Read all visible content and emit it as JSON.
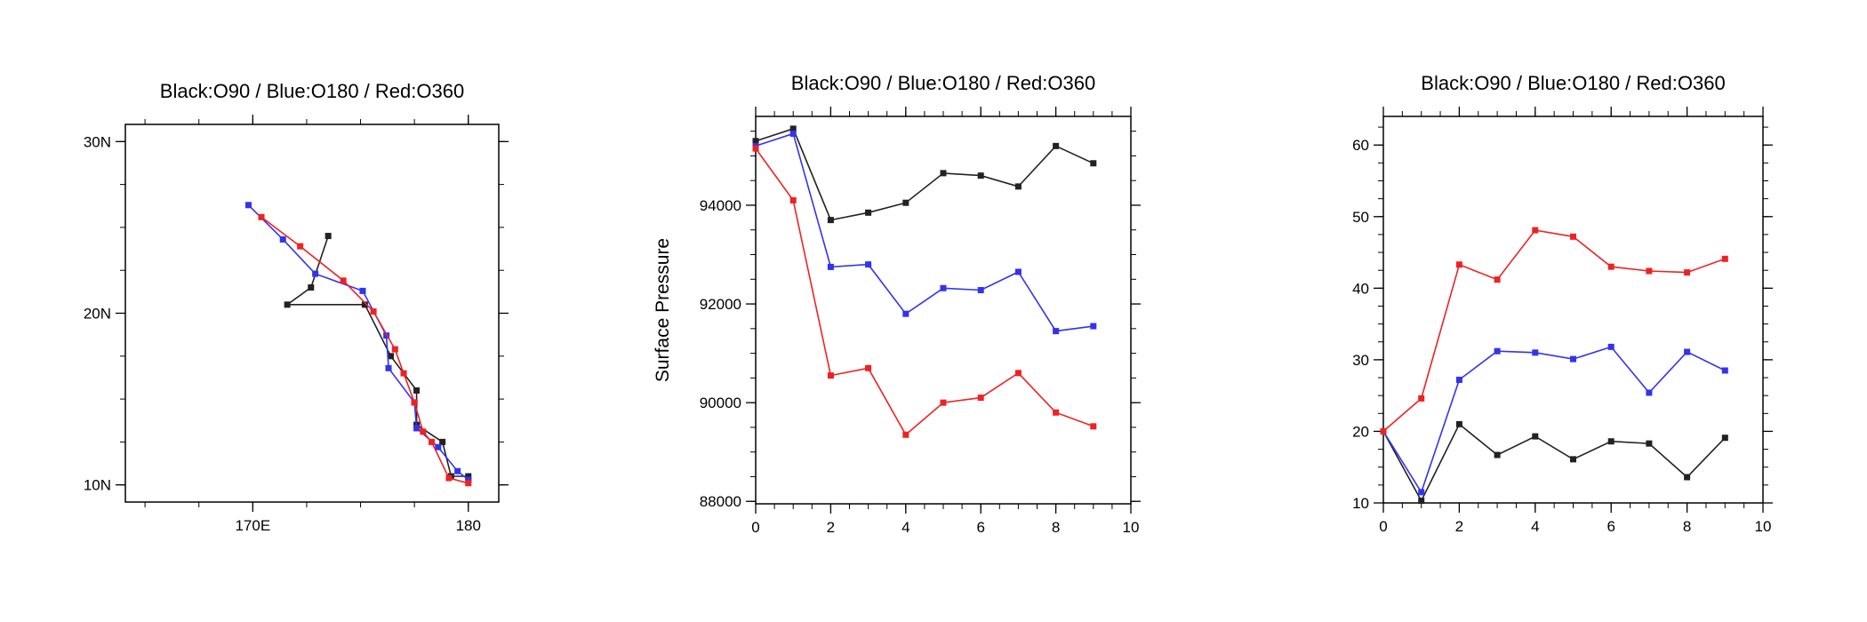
{
  "colors": {
    "black": "#222222",
    "blue": "#3333ee",
    "red": "#ee2222"
  },
  "chart_data": [
    {
      "type": "line",
      "title": "Black:O90 / Blue:O180 / Red:O360",
      "xlabel": "",
      "ylabel": "",
      "xlim": [
        164.5,
        181
      ],
      "ylim": [
        9,
        31
      ],
      "x_ticks": [
        {
          "v": 170,
          "label": "170E"
        },
        {
          "v": 180,
          "label": "180"
        }
      ],
      "y_ticks": [
        {
          "v": 10,
          "label": "10N"
        },
        {
          "v": 20,
          "label": "20N"
        },
        {
          "v": 30,
          "label": "30N"
        }
      ],
      "x_minor_step": 2.5,
      "y_minor_step": 2.5,
      "series": [
        {
          "color": "black",
          "x": [
            173.5,
            172.7,
            171.6,
            175.2,
            176.4,
            177.6,
            177.6,
            178.8,
            179.2,
            180.0,
            180.0
          ],
          "y": [
            24.5,
            21.5,
            20.5,
            20.5,
            17.5,
            15.5,
            13.5,
            12.5,
            10.5,
            10.5,
            10.3
          ]
        },
        {
          "color": "blue",
          "x": [
            169.8,
            171.4,
            172.9,
            175.1,
            176.2,
            176.3,
            177.5,
            177.6,
            178.6,
            179.5,
            180.0
          ],
          "y": [
            26.3,
            24.3,
            22.3,
            21.3,
            18.7,
            16.8,
            14.8,
            13.3,
            12.2,
            10.8,
            10.3
          ]
        },
        {
          "color": "red",
          "x": [
            170.4,
            172.2,
            174.2,
            175.6,
            176.6,
            177.0,
            177.5,
            177.9,
            178.3,
            179.1,
            180.0
          ],
          "y": [
            25.6,
            23.9,
            21.9,
            20.1,
            17.9,
            16.5,
            14.8,
            13.1,
            12.5,
            10.4,
            10.1
          ]
        }
      ]
    },
    {
      "type": "line",
      "title": "Black:O90 / Blue:O180 / Red:O360",
      "xlabel": "",
      "ylabel": "Surface Pressure",
      "xlim": [
        0,
        10
      ],
      "ylim": [
        87950,
        95800
      ],
      "x_ticks": [
        {
          "v": 0,
          "label": "0"
        },
        {
          "v": 2,
          "label": "2"
        },
        {
          "v": 4,
          "label": "4"
        },
        {
          "v": 6,
          "label": "6"
        },
        {
          "v": 8,
          "label": "8"
        },
        {
          "v": 10,
          "label": "10"
        }
      ],
      "y_ticks": [
        {
          "v": 88000,
          "label": "88000"
        },
        {
          "v": 90000,
          "label": "90000"
        },
        {
          "v": 92000,
          "label": "92000"
        },
        {
          "v": 94000,
          "label": "94000"
        }
      ],
      "x_minor_step": 0.5,
      "y_minor_step": 500,
      "series": [
        {
          "color": "black",
          "x": [
            0,
            1,
            2,
            3,
            4,
            5,
            6,
            7,
            8,
            9
          ],
          "y": [
            95300,
            95550,
            93700,
            93850,
            94050,
            94650,
            94600,
            94380,
            95200,
            94850
          ]
        },
        {
          "color": "blue",
          "x": [
            0,
            1,
            2,
            3,
            4,
            5,
            6,
            7,
            8,
            9
          ],
          "y": [
            95200,
            95450,
            92750,
            92800,
            91800,
            92320,
            92280,
            92650,
            91450,
            91550
          ]
        },
        {
          "color": "red",
          "x": [
            0,
            1,
            2,
            3,
            4,
            5,
            6,
            7,
            8,
            9
          ],
          "y": [
            95150,
            94100,
            90550,
            90700,
            89350,
            90000,
            90100,
            90600,
            89800,
            89520
          ]
        }
      ]
    },
    {
      "type": "line",
      "title": "Black:O90 / Blue:O180 / Red:O360",
      "xlabel": "",
      "ylabel": "",
      "xlim": [
        0,
        10
      ],
      "ylim": [
        10,
        64
      ],
      "x_ticks": [
        {
          "v": 0,
          "label": "0"
        },
        {
          "v": 2,
          "label": "2"
        },
        {
          "v": 4,
          "label": "4"
        },
        {
          "v": 6,
          "label": "6"
        },
        {
          "v": 8,
          "label": "8"
        },
        {
          "v": 10,
          "label": "10"
        }
      ],
      "y_ticks": [
        {
          "v": 10,
          "label": "10"
        },
        {
          "v": 20,
          "label": "20"
        },
        {
          "v": 30,
          "label": "30"
        },
        {
          "v": 40,
          "label": "40"
        },
        {
          "v": 50,
          "label": "50"
        },
        {
          "v": 60,
          "label": "60"
        }
      ],
      "x_minor_step": 0.5,
      "y_minor_step": 2.5,
      "series": [
        {
          "color": "black",
          "x": [
            0,
            1,
            2,
            3,
            4,
            5,
            6,
            7,
            8,
            9
          ],
          "y": [
            20,
            10.3,
            21,
            16.7,
            19.3,
            16.1,
            18.6,
            18.3,
            13.6,
            19.1
          ]
        },
        {
          "color": "blue",
          "x": [
            0,
            1,
            2,
            3,
            4,
            5,
            6,
            7,
            8,
            9
          ],
          "y": [
            20,
            11.5,
            27.2,
            31.2,
            31.0,
            30.1,
            31.8,
            25.4,
            31.1,
            28.5
          ]
        },
        {
          "color": "red",
          "x": [
            0,
            1,
            2,
            3,
            4,
            5,
            6,
            7,
            8,
            9
          ],
          "y": [
            20,
            24.6,
            43.3,
            41.2,
            48.1,
            47.2,
            43.0,
            42.4,
            42.2,
            44.1
          ]
        }
      ]
    }
  ]
}
